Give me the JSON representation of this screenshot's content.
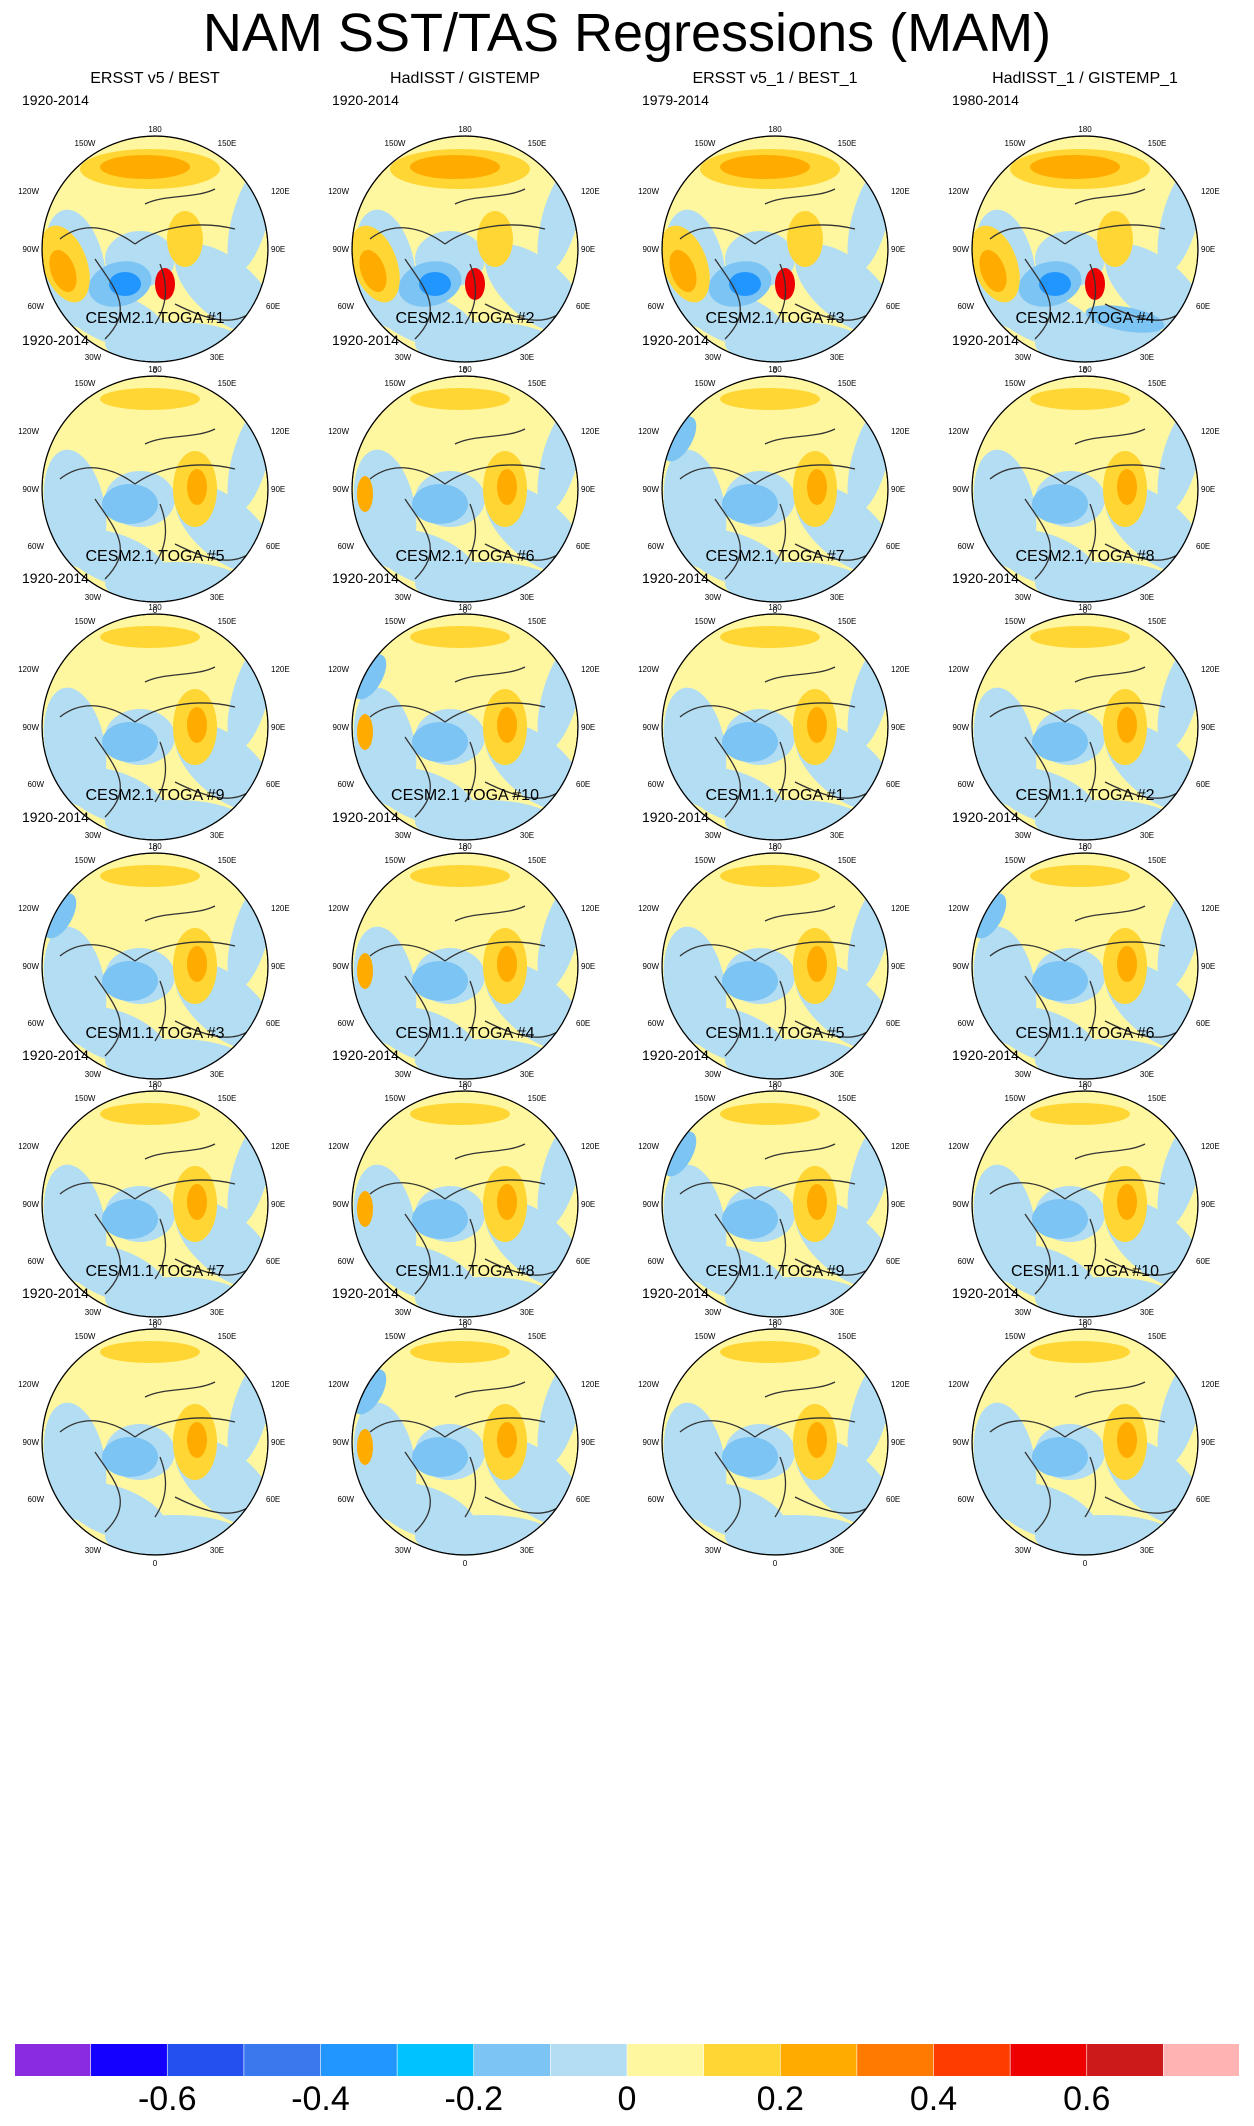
{
  "title": "NAM SST/TAS Regressions (MAM)",
  "lon_labels": {
    "top": "180",
    "upper_left": "150W",
    "upper_right": "150E",
    "mid_upper_left": "120W",
    "mid_upper_right": "120E",
    "left": "90W",
    "right": "90E",
    "lower_left": "60W",
    "lower_right": "60E",
    "bottom_left": "30W",
    "bottom_right": "30E",
    "bottom": "0"
  },
  "panels": [
    {
      "title": "ERSST v5 / BEST",
      "years": "1920-2014",
      "pattern": "obs"
    },
    {
      "title": "HadISST / GISTEMP",
      "years": "1920-2014",
      "pattern": "obs"
    },
    {
      "title": "ERSST v5_1 / BEST_1",
      "years": "1979-2014",
      "pattern": "obs"
    },
    {
      "title": "HadISST_1 / GISTEMP_1",
      "years": "1980-2014",
      "pattern": "obs2"
    },
    {
      "title": "CESM2.1 TOGA #1",
      "years": "1920-2014",
      "pattern": "model"
    },
    {
      "title": "CESM2.1 TOGA #2",
      "years": "1920-2014",
      "pattern": "model"
    },
    {
      "title": "CESM2.1 TOGA #3",
      "years": "1920-2014",
      "pattern": "model"
    },
    {
      "title": "CESM2.1 TOGA #4",
      "years": "1920-2014",
      "pattern": "model"
    },
    {
      "title": "CESM2.1 TOGA #5",
      "years": "1920-2014",
      "pattern": "model"
    },
    {
      "title": "CESM2.1 TOGA #6",
      "years": "1920-2014",
      "pattern": "model"
    },
    {
      "title": "CESM2.1 TOGA #7",
      "years": "1920-2014",
      "pattern": "model"
    },
    {
      "title": "CESM2.1 TOGA #8",
      "years": "1920-2014",
      "pattern": "model"
    },
    {
      "title": "CESM2.1 TOGA #9",
      "years": "1920-2014",
      "pattern": "model"
    },
    {
      "title": "CESM2.1 TOGA #10",
      "years": "1920-2014",
      "pattern": "model"
    },
    {
      "title": "CESM1.1 TOGA #1",
      "years": "1920-2014",
      "pattern": "model"
    },
    {
      "title": "CESM1.1 TOGA #2",
      "years": "1920-2014",
      "pattern": "model"
    },
    {
      "title": "CESM1.1 TOGA #3",
      "years": "1920-2014",
      "pattern": "model"
    },
    {
      "title": "CESM1.1 TOGA #4",
      "years": "1920-2014",
      "pattern": "model"
    },
    {
      "title": "CESM1.1 TOGA #5",
      "years": "1920-2014",
      "pattern": "model"
    },
    {
      "title": "CESM1.1 TOGA #6",
      "years": "1920-2014",
      "pattern": "model"
    },
    {
      "title": "CESM1.1 TOGA #7",
      "years": "1920-2014",
      "pattern": "model"
    },
    {
      "title": "CESM1.1 TOGA #8",
      "years": "1920-2014",
      "pattern": "model"
    },
    {
      "title": "CESM1.1 TOGA #9",
      "years": "1920-2014",
      "pattern": "model"
    },
    {
      "title": "CESM1.1 TOGA #10",
      "years": "1920-2014",
      "pattern": "model"
    }
  ],
  "colorbar": {
    "colors": [
      "#8a2be2",
      "#1400ff",
      "#2550f0",
      "#3a78ee",
      "#2296ff",
      "#00c2ff",
      "#7cc4f4",
      "#b3ddf2",
      "#fff7a0",
      "#ffd633",
      "#ffab00",
      "#ff7a00",
      "#ff3c00",
      "#ee0000",
      "#cc1a1a",
      "#ffb3b3"
    ],
    "labels": [
      "-0.6",
      "-0.4",
      "-0.2",
      "0",
      "0.2",
      "0.4",
      "0.6"
    ],
    "label_boundary_index": [
      2,
      4,
      6,
      8,
      10,
      12,
      14
    ]
  },
  "map_colors": {
    "background": "#fff7a0",
    "light_blue": "#b3ddf2",
    "mid_blue": "#7cc4f4",
    "deep_blue": "#2296ff",
    "yellow_orange": "#ffd633",
    "orange": "#ffab00",
    "red": "#ee0000",
    "coast": "#333333"
  }
}
